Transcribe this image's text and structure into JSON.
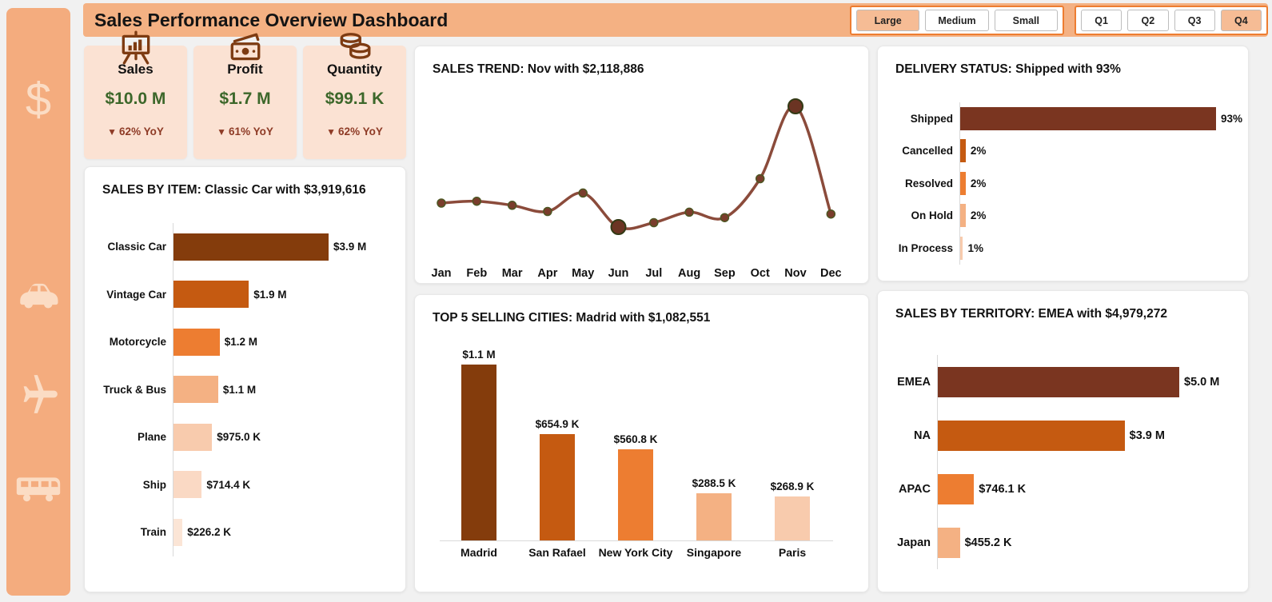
{
  "app": {
    "title": "Sales Performance Overview Dashboard"
  },
  "filters": {
    "deal_size": {
      "options": [
        {
          "label": "Large",
          "selected": true
        },
        {
          "label": "Medium",
          "selected": false
        },
        {
          "label": "Small",
          "selected": false
        }
      ]
    },
    "quarter": {
      "options": [
        {
          "label": "Q1",
          "selected": false
        },
        {
          "label": "Q2",
          "selected": false
        },
        {
          "label": "Q3",
          "selected": false
        },
        {
          "label": "Q4",
          "selected": true
        }
      ]
    }
  },
  "sidebar": {
    "icons": [
      "dollar-icon",
      "car-icon",
      "plane-icon",
      "bus-icon"
    ]
  },
  "kpis": [
    {
      "label": "Sales",
      "value": "$10.0 M",
      "trend_arrow": "▼",
      "trend": "62% YoY",
      "icon": "bar-chart-easel-icon"
    },
    {
      "label": "Profit",
      "value": "$1.7 M",
      "trend_arrow": "▼",
      "trend": "61% YoY",
      "icon": "banknote-icon"
    },
    {
      "label": "Quantity",
      "value": "$99.1 K",
      "trend_arrow": "▼",
      "trend": "62% YoY",
      "icon": "coins-icon"
    }
  ],
  "colors": {
    "accent": "#ED7D31",
    "header_bg": "#F4B183",
    "sidebar_bg": "#F4AC7E",
    "kpi_card_bg": "#FBE2D3",
    "kpi_value_green": "#3C672A",
    "kpi_negative_red": "#8E3B26",
    "selected_filter_bg": "#F6BC95"
  },
  "chart_data": [
    {
      "id": "sales-by-item",
      "type": "bar",
      "orientation": "horizontal",
      "title": "SALES BY ITEM: Classic Car with $3,919,616",
      "categories": [
        "Classic Car",
        "Vintage Car",
        "Motorcycle",
        "Truck & Bus",
        "Plane",
        "Ship",
        "Train"
      ],
      "values": [
        3919616,
        1903151,
        1166388,
        1127790,
        975004,
        714437,
        226243
      ],
      "value_labels": [
        "$3.9 M",
        "$1.9 M",
        "$1.2 M",
        "$1.1 M",
        "$975.0 K",
        "$714.4 K",
        "$226.2 K"
      ],
      "bar_colors": [
        "#843C0C",
        "#C55A11",
        "#ED7D31",
        "#F4B183",
        "#F8CBAD",
        "#FAD9C4",
        "#FBE5D6"
      ]
    },
    {
      "id": "sales-trend",
      "type": "line",
      "title": "SALES TREND: Nov with $2,118,886",
      "x": [
        "Jan",
        "Feb",
        "Mar",
        "Apr",
        "May",
        "Jun",
        "Jul",
        "Aug",
        "Sep",
        "Oct",
        "Nov",
        "Dec"
      ],
      "values": [
        785874,
        810442,
        754501,
        669391,
        923972,
        454757,
        514876,
        659311,
        584724,
        1121215,
        2118886,
        634679
      ],
      "highlighted_points": [
        "Jun",
        "Nov"
      ],
      "line_color": "#8B4B3B",
      "point_fill": "#7A3D2C",
      "point_stroke": "#4E5623",
      "highlight_fill": "#6B3423",
      "highlight_stroke": "#333A15"
    },
    {
      "id": "delivery-status",
      "type": "bar",
      "orientation": "horizontal",
      "title": "DELIVERY STATUS: Shipped with 93%",
      "categories": [
        "Shipped",
        "Cancelled",
        "Resolved",
        "On Hold",
        "In Process"
      ],
      "values": [
        93,
        2,
        2,
        2,
        1
      ],
      "value_labels": [
        "93%",
        "2%",
        "2%",
        "2%",
        "1%"
      ],
      "bar_colors": [
        "#7A3520",
        "#C55A11",
        "#ED7D31",
        "#F4B183",
        "#F8CBAD"
      ]
    },
    {
      "id": "top-5-selling-cities",
      "type": "bar",
      "orientation": "vertical",
      "title": "TOP 5 SELLING CITIES: Madrid with $1,082,551",
      "categories": [
        "Madrid",
        "San Rafael",
        "New York City",
        "Singapore",
        "Paris"
      ],
      "values": [
        1082551,
        654858,
        560788,
        288488,
        268945
      ],
      "value_labels": [
        "$1.1 M",
        "$654.9 K",
        "$560.8 K",
        "$288.5 K",
        "$268.9 K"
      ],
      "bar_colors": [
        "#843C0C",
        "#C55A11",
        "#ED7D31",
        "#F4B183",
        "#F8CBAD"
      ]
    },
    {
      "id": "sales-by-territory",
      "type": "bar",
      "orientation": "horizontal",
      "title": "SALES BY TERRITORY: EMEA with $4,979,272",
      "categories": [
        "EMEA",
        "NA",
        "APAC",
        "Japan"
      ],
      "values": [
        4979272,
        3852061,
        746122,
        455173
      ],
      "value_labels": [
        "$5.0 M",
        "$3.9 M",
        "$746.1 K",
        "$455.2 K"
      ],
      "bar_colors": [
        "#7A3520",
        "#C55A11",
        "#ED7D31",
        "#F4B183"
      ]
    }
  ]
}
